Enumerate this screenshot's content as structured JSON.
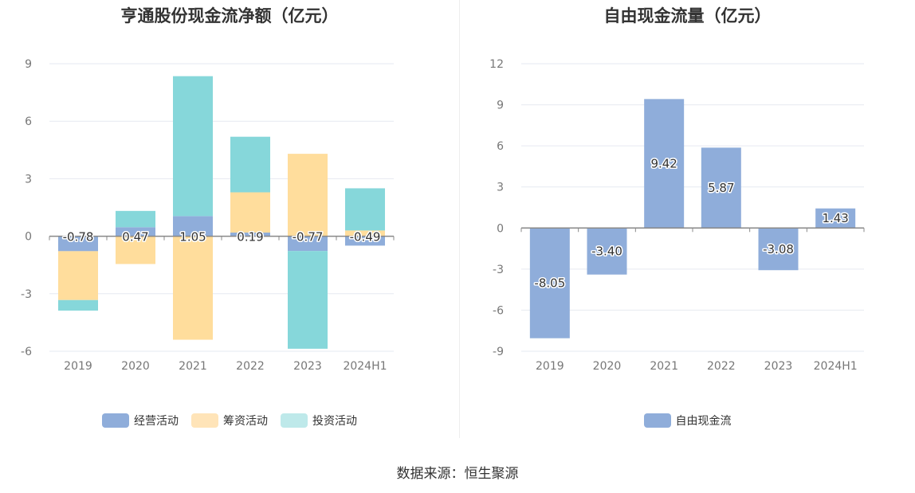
{
  "source_text": "数据来源：恒生聚源",
  "colors": {
    "operating": "#8FADDA",
    "financing": "#FFDD9C",
    "investing": "#86D7DA",
    "fcf": "#8FADDA",
    "grid": "#E6E9F0",
    "axis_text": "#777777",
    "label_text": "#333333"
  },
  "chart_data": [
    {
      "type": "bar",
      "stacked": true,
      "title": "亨通股份现金流净额（亿元）",
      "categories": [
        "2019",
        "2020",
        "2021",
        "2022",
        "2023",
        "2024H1"
      ],
      "yticks": [
        "9",
        "6",
        "3",
        "0",
        "-3",
        "-6"
      ],
      "ylim": [
        -6,
        9
      ],
      "grid": true,
      "legend_position": "bottom",
      "series": [
        {
          "name": "经营活动",
          "values": [
            -0.78,
            0.47,
            1.05,
            0.19,
            -0.77,
            -0.49
          ],
          "labels": [
            "-0.78",
            "0.47",
            "1.05",
            "0.19",
            "-0.77",
            "-0.49"
          ]
        },
        {
          "name": "筹资活动",
          "values": [
            -2.55,
            -1.45,
            -5.4,
            2.1,
            4.3,
            0.3
          ]
        },
        {
          "name": "投资活动",
          "values": [
            -0.55,
            0.85,
            7.3,
            2.9,
            -5.1,
            2.2
          ]
        }
      ]
    },
    {
      "type": "bar",
      "title": "自由现金流量（亿元）",
      "categories": [
        "2019",
        "2020",
        "2021",
        "2022",
        "2023",
        "2024H1"
      ],
      "yticks": [
        "12",
        "9",
        "6",
        "3",
        "0",
        "-3",
        "-6",
        "-9"
      ],
      "ylim": [
        -9,
        12
      ],
      "grid": true,
      "legend_position": "bottom",
      "series": [
        {
          "name": "自由现金流",
          "values": [
            -8.05,
            -3.4,
            9.42,
            5.87,
            -3.08,
            1.43
          ],
          "labels": [
            "-8.05",
            "-3.40",
            "9.42",
            "5.87",
            "-3.08",
            "1.43"
          ]
        }
      ]
    }
  ]
}
